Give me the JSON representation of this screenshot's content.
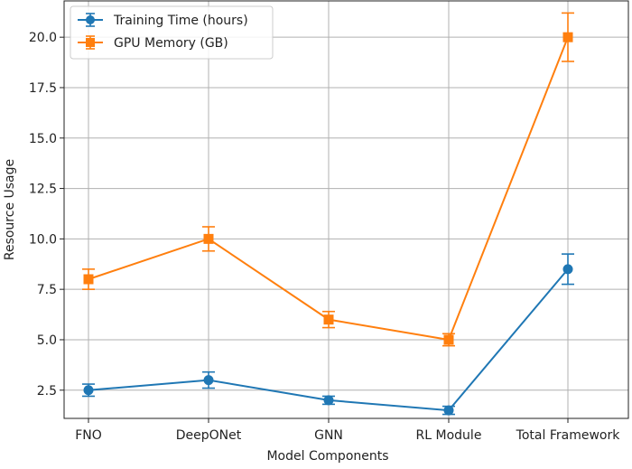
{
  "chart_data": {
    "type": "line",
    "categories": [
      "FNO",
      "DeepONet",
      "GNN",
      "RL Module",
      "Total Framework"
    ],
    "xlabel": "Model Components",
    "ylabel": "Resource Usage",
    "ylim": [
      1.1,
      21.8
    ],
    "yticks": [
      2.5,
      5.0,
      7.5,
      10.0,
      12.5,
      15.0,
      17.5,
      20.0
    ],
    "ytick_labels": [
      "2.5",
      "5.0",
      "7.5",
      "10.0",
      "12.5",
      "15.0",
      "17.5",
      "20.0"
    ],
    "grid": true,
    "legend_position": "top-left",
    "series": [
      {
        "name": "Training Time (hours)",
        "color": "#1f77b4",
        "marker": "circle",
        "values": [
          2.5,
          3.0,
          2.0,
          1.5,
          8.5
        ],
        "errors": [
          0.3,
          0.4,
          0.2,
          0.2,
          0.75
        ]
      },
      {
        "name": "GPU Memory (GB)",
        "color": "#ff7f0e",
        "marker": "square",
        "values": [
          8.0,
          10.0,
          6.0,
          5.0,
          20.0
        ],
        "errors": [
          0.5,
          0.6,
          0.4,
          0.3,
          1.2
        ]
      }
    ]
  }
}
